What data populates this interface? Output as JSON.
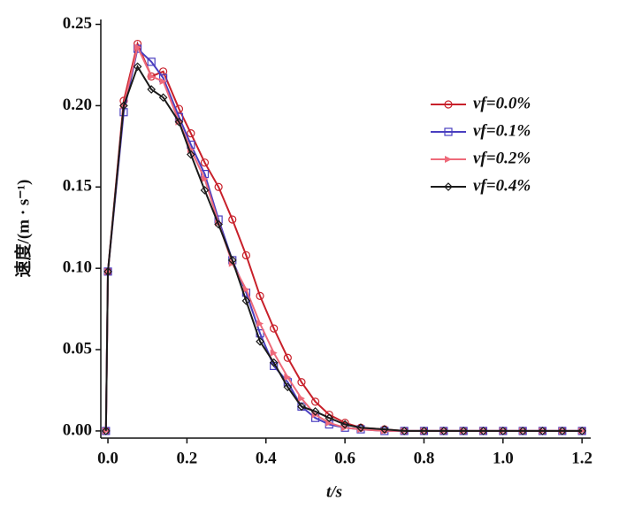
{
  "chart_data": {
    "type": "line",
    "xlabel": "t/s",
    "ylabel": "速度/(m · s⁻¹)",
    "x": [
      -0.005,
      0.0,
      0.04,
      0.075,
      0.11,
      0.14,
      0.18,
      0.21,
      0.245,
      0.28,
      0.315,
      0.35,
      0.385,
      0.42,
      0.455,
      0.49,
      0.525,
      0.56,
      0.6,
      0.64,
      0.7,
      0.75,
      0.8,
      0.85,
      0.9,
      0.95,
      1.0,
      1.05,
      1.1,
      1.15,
      1.2
    ],
    "series": [
      {
        "name": "vf=0.0%",
        "color": "#c8202a",
        "marker": "circle",
        "values": [
          0,
          0.098,
          0.203,
          0.238,
          0.218,
          0.221,
          0.198,
          0.183,
          0.165,
          0.15,
          0.13,
          0.108,
          0.083,
          0.063,
          0.045,
          0.03,
          0.018,
          0.01,
          0.005,
          0.002,
          0.001,
          0,
          0,
          0,
          0,
          0,
          0,
          0,
          0,
          0,
          0
        ]
      },
      {
        "name": "vf=0.1%",
        "color": "#4a3fc0",
        "marker": "square",
        "values": [
          0,
          0.098,
          0.196,
          0.235,
          0.227,
          0.217,
          0.193,
          0.176,
          0.158,
          0.13,
          0.105,
          0.085,
          0.06,
          0.04,
          0.03,
          0.015,
          0.008,
          0.004,
          0.002,
          0.001,
          0,
          0,
          0,
          0,
          0,
          0,
          0,
          0,
          0,
          0,
          0
        ]
      },
      {
        "name": "vf=0.2%",
        "color": "#ee6a7a",
        "marker": "triangle",
        "values": [
          0,
          0.098,
          0.2,
          0.236,
          0.218,
          0.215,
          0.19,
          0.173,
          0.155,
          0.128,
          0.103,
          0.087,
          0.066,
          0.048,
          0.033,
          0.02,
          0.01,
          0.005,
          0.002,
          0.001,
          0,
          0,
          0,
          0,
          0,
          0,
          0,
          0,
          0,
          0,
          0
        ]
      },
      {
        "name": "vf=0.4%",
        "color": "#1a1a1a",
        "marker": "diamond",
        "values": [
          0,
          0.098,
          0.2,
          0.224,
          0.21,
          0.205,
          0.19,
          0.17,
          0.148,
          0.127,
          0.105,
          0.08,
          0.055,
          0.042,
          0.027,
          0.015,
          0.012,
          0.008,
          0.004,
          0.002,
          0.001,
          0,
          0,
          0,
          0,
          0,
          0,
          0,
          0,
          0,
          0
        ]
      }
    ],
    "xlim": [
      -0.018,
      1.222
    ],
    "ylim": [
      -0.0044,
      0.253
    ],
    "xticks": [
      {
        "value": 0,
        "label": "0.0"
      },
      0.2,
      0.4,
      0.6,
      0.8,
      {
        "value": 1,
        "label": "1.0"
      },
      1.2
    ],
    "yticks": [
      {
        "value": 0,
        "label": "0.00"
      },
      0.05,
      {
        "value": 0.1,
        "label": "0.10"
      },
      0.15,
      {
        "value": 0.2,
        "label": "0.20"
      },
      0.25
    ],
    "legend": "upper right"
  }
}
